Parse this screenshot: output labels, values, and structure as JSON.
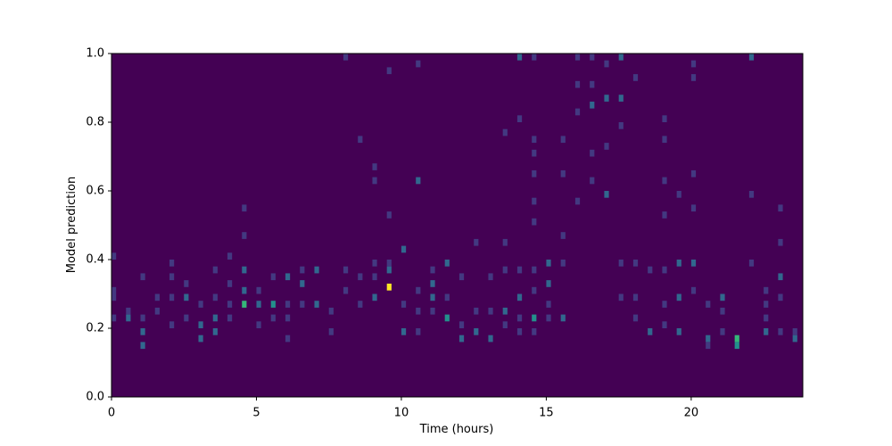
{
  "chart_data": {
    "type": "heatmap",
    "xlabel": "Time (hours)",
    "ylabel": "Model prediction",
    "xlim": [
      0,
      23.85
    ],
    "ylim": [
      0,
      1
    ],
    "xticks": [
      0,
      5,
      10,
      15,
      20
    ],
    "yticks": [
      {
        "value": 0,
        "label": "0.0"
      },
      0.2,
      0.4,
      0.6,
      0.8,
      {
        "value": 1,
        "label": "1.0"
      }
    ],
    "colormap": "viridis",
    "background_color": "#440154",
    "bin_size": {
      "x": 0.16,
      "y": 0.02
    },
    "columns": [
      {
        "x": 0.0,
        "y": [
          0.4,
          0.3,
          0.28,
          0.22
        ],
        "values": [
          1,
          1,
          1,
          1
        ]
      },
      {
        "x": 0.5,
        "y": [
          0.24,
          0.22
        ],
        "values": [
          1,
          2
        ]
      },
      {
        "x": 1.0,
        "y": [
          0.34,
          0.22,
          0.18,
          0.14
        ],
        "values": [
          1,
          1,
          2,
          2
        ]
      },
      {
        "x": 1.5,
        "y": [
          0.28,
          0.24
        ],
        "values": [
          1,
          1
        ]
      },
      {
        "x": 2.0,
        "y": [
          0.38,
          0.34,
          0.28,
          0.2
        ],
        "values": [
          1,
          1,
          1,
          1
        ]
      },
      {
        "x": 2.5,
        "y": [
          0.32,
          0.28,
          0.22
        ],
        "values": [
          1,
          2,
          1
        ]
      },
      {
        "x": 3.0,
        "y": [
          0.26,
          0.2,
          0.16
        ],
        "values": [
          1,
          2,
          2
        ]
      },
      {
        "x": 3.5,
        "y": [
          0.36,
          0.28,
          0.22,
          0.18
        ],
        "values": [
          1,
          1,
          2,
          2
        ]
      },
      {
        "x": 4.0,
        "y": [
          0.4,
          0.32,
          0.26,
          0.22
        ],
        "values": [
          1,
          1,
          1,
          1
        ]
      },
      {
        "x": 4.5,
        "y": [
          0.54,
          0.46,
          0.36,
          0.3,
          0.26
        ],
        "values": [
          1,
          1,
          2,
          2,
          4
        ]
      },
      {
        "x": 5.0,
        "y": [
          0.3,
          0.26,
          0.2
        ],
        "values": [
          1,
          2,
          1
        ]
      },
      {
        "x": 5.5,
        "y": [
          0.34,
          0.26,
          0.22
        ],
        "values": [
          1,
          3,
          1
        ]
      },
      {
        "x": 6.0,
        "y": [
          0.34,
          0.26,
          0.22,
          0.16
        ],
        "values": [
          2,
          1,
          1,
          1
        ]
      },
      {
        "x": 6.5,
        "y": [
          0.36,
          0.32,
          0.26
        ],
        "values": [
          1,
          2,
          1
        ]
      },
      {
        "x": 7.0,
        "y": [
          0.36,
          0.26
        ],
        "values": [
          2,
          2
        ]
      },
      {
        "x": 7.5,
        "y": [
          0.24,
          0.18
        ],
        "values": [
          1,
          1
        ]
      },
      {
        "x": 8.0,
        "y": [
          0.98,
          0.36,
          0.3
        ],
        "values": [
          1,
          1,
          1
        ]
      },
      {
        "x": 8.5,
        "y": [
          0.74,
          0.34,
          0.26
        ],
        "values": [
          1,
          1,
          1
        ]
      },
      {
        "x": 9.0,
        "y": [
          0.66,
          0.62,
          0.38,
          0.34,
          0.28
        ],
        "values": [
          1,
          1,
          1,
          1,
          2
        ]
      },
      {
        "x": 9.5,
        "y": [
          0.94,
          0.52,
          0.38,
          0.36,
          0.31
        ],
        "values": [
          1,
          1,
          1,
          2,
          6
        ]
      },
      {
        "x": 10.0,
        "y": [
          0.42,
          0.26,
          0.18
        ],
        "values": [
          2,
          1,
          2
        ]
      },
      {
        "x": 10.5,
        "y": [
          0.96,
          0.62,
          0.3,
          0.24,
          0.18
        ],
        "values": [
          1,
          2,
          1,
          1,
          1
        ]
      },
      {
        "x": 11.0,
        "y": [
          0.36,
          0.32,
          0.28,
          0.24
        ],
        "values": [
          1,
          2,
          2,
          1
        ]
      },
      {
        "x": 11.5,
        "y": [
          0.38,
          0.28,
          0.22
        ],
        "values": [
          2,
          1,
          3
        ]
      },
      {
        "x": 12.0,
        "y": [
          0.34,
          0.2,
          0.16
        ],
        "values": [
          1,
          1,
          2
        ]
      },
      {
        "x": 12.5,
        "y": [
          0.44,
          0.24,
          0.18
        ],
        "values": [
          1,
          1,
          2
        ]
      },
      {
        "x": 13.0,
        "y": [
          0.34,
          0.24,
          0.16
        ],
        "values": [
          1,
          1,
          2
        ]
      },
      {
        "x": 13.5,
        "y": [
          0.76,
          0.44,
          0.36,
          0.24,
          0.2
        ],
        "values": [
          1,
          1,
          1,
          2,
          1
        ]
      },
      {
        "x": 14.0,
        "y": [
          0.98,
          0.8,
          0.36,
          0.28,
          0.22,
          0.18
        ],
        "values": [
          2,
          1,
          1,
          2,
          1,
          1
        ]
      },
      {
        "x": 14.5,
        "y": [
          0.98,
          0.74,
          0.7,
          0.64,
          0.56,
          0.5,
          0.36,
          0.3,
          0.22,
          0.18
        ],
        "values": [
          1,
          1,
          1,
          1,
          1,
          1,
          1,
          1,
          3,
          1
        ]
      },
      {
        "x": 15.0,
        "y": [
          0.38,
          0.32,
          0.26,
          0.22
        ],
        "values": [
          2,
          2,
          1,
          1
        ]
      },
      {
        "x": 15.5,
        "y": [
          0.74,
          0.64,
          0.46,
          0.38,
          0.22
        ],
        "values": [
          1,
          1,
          1,
          1,
          2
        ]
      },
      {
        "x": 16.0,
        "y": [
          0.98,
          0.9,
          0.82,
          0.56
        ],
        "values": [
          1,
          1,
          1,
          1
        ]
      },
      {
        "x": 16.5,
        "y": [
          0.98,
          0.9,
          0.84,
          0.7,
          0.62
        ],
        "values": [
          1,
          1,
          2,
          1,
          1
        ]
      },
      {
        "x": 17.0,
        "y": [
          0.96,
          0.86,
          0.72,
          0.58
        ],
        "values": [
          1,
          2,
          1,
          2
        ]
      },
      {
        "x": 17.5,
        "y": [
          0.98,
          0.86,
          0.78,
          0.38,
          0.28
        ],
        "values": [
          2,
          2,
          1,
          1,
          1
        ]
      },
      {
        "x": 18.0,
        "y": [
          0.92,
          0.38,
          0.28,
          0.22
        ],
        "values": [
          1,
          1,
          1,
          1
        ]
      },
      {
        "x": 18.5,
        "y": [
          0.36,
          0.18
        ],
        "values": [
          1,
          2
        ]
      },
      {
        "x": 19.0,
        "y": [
          0.8,
          0.74,
          0.62,
          0.52,
          0.36,
          0.26,
          0.2
        ],
        "values": [
          1,
          1,
          1,
          1,
          1,
          1,
          1
        ]
      },
      {
        "x": 19.5,
        "y": [
          0.58,
          0.38,
          0.28,
          0.18
        ],
        "values": [
          1,
          2,
          2,
          2
        ]
      },
      {
        "x": 20.0,
        "y": [
          0.96,
          0.92,
          0.64,
          0.54,
          0.38,
          0.3
        ],
        "values": [
          1,
          1,
          1,
          1,
          2,
          1
        ]
      },
      {
        "x": 20.5,
        "y": [
          0.26,
          0.16,
          0.14
        ],
        "values": [
          1,
          2,
          1
        ]
      },
      {
        "x": 21.0,
        "y": [
          0.28,
          0.24,
          0.18
        ],
        "values": [
          2,
          1,
          1
        ]
      },
      {
        "x": 21.5,
        "y": [
          0.16,
          0.14
        ],
        "values": [
          4,
          3
        ]
      },
      {
        "x": 22.0,
        "y": [
          0.98,
          0.58,
          0.38
        ],
        "values": [
          2,
          1,
          1
        ]
      },
      {
        "x": 22.5,
        "y": [
          0.3,
          0.26,
          0.22,
          0.18
        ],
        "values": [
          1,
          1,
          1,
          2
        ]
      },
      {
        "x": 23.0,
        "y": [
          0.54,
          0.44,
          0.34,
          0.28,
          0.18
        ],
        "values": [
          1,
          1,
          2,
          1,
          1
        ]
      },
      {
        "x": 23.5,
        "y": [
          0.18,
          0.16
        ],
        "values": [
          1,
          2
        ]
      }
    ]
  }
}
